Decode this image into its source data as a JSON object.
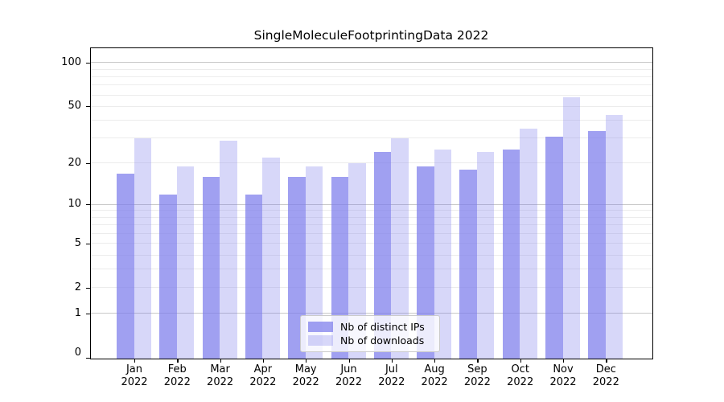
{
  "chart_data": {
    "type": "bar",
    "title": "SingleMoleculeFootprintingData 2022",
    "categories": [
      "Jan",
      "Feb",
      "Mar",
      "Apr",
      "May",
      "Jun",
      "Jul",
      "Aug",
      "Sep",
      "Oct",
      "Nov",
      "Dec"
    ],
    "x_sub_label": "2022",
    "series": [
      {
        "name": "Nb of distinct IPs",
        "color": "rgba(124,124,235,0.72)",
        "values": [
          17,
          12,
          16,
          12,
          16,
          16,
          24,
          19,
          18,
          25,
          31,
          34
        ]
      },
      {
        "name": "Nb of downloads",
        "color": "rgba(124,124,235,0.30)",
        "values": [
          30,
          19,
          29,
          22,
          19,
          20,
          30,
          25,
          24,
          35,
          58,
          44
        ]
      }
    ],
    "xlabel": "",
    "ylabel": "",
    "yscale": "log1p",
    "ylim": [
      0,
      125
    ],
    "ytick_labels": [
      0,
      1,
      2,
      5,
      10,
      20,
      50,
      100
    ],
    "gridlines_major": [
      1,
      10,
      100
    ],
    "gridlines_minor": [
      2,
      3,
      4,
      5,
      6,
      7,
      8,
      9,
      20,
      30,
      40,
      50,
      60,
      70,
      80,
      90
    ],
    "grid": "on",
    "legend_position": "lower center",
    "colors": {
      "bar_distinct_ips": "rgba(124,124,235,0.72)",
      "bar_downloads": "rgba(124,124,235,0.30)",
      "grid_major": "#c8c8c8",
      "grid_minor": "#ececec",
      "axis": "#000000",
      "background": "#ffffff"
    }
  }
}
